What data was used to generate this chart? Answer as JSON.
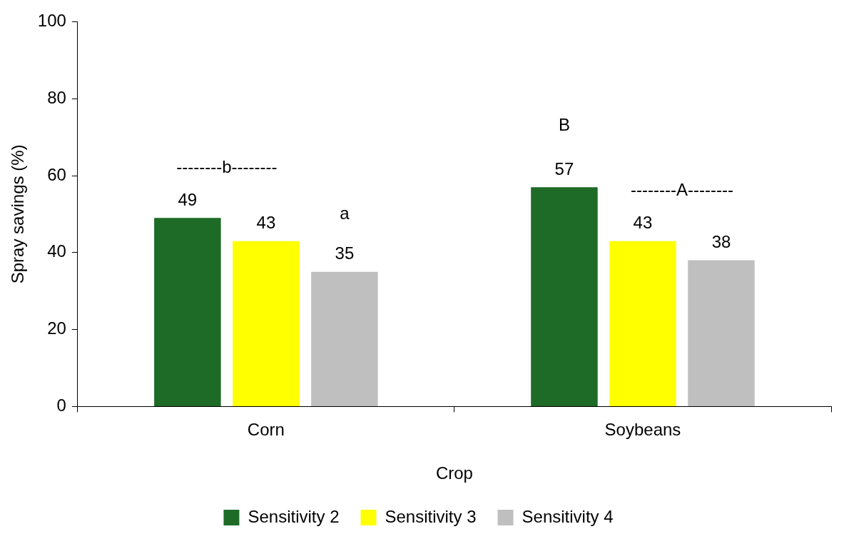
{
  "chart_data": {
    "type": "bar",
    "xlabel": "Crop",
    "ylabel": "Spray savings (%)",
    "categories": [
      "Corn",
      "Soybeans"
    ],
    "series": [
      {
        "name": "Sensitivity 2",
        "color": "#1e6b27",
        "values": [
          49,
          57
        ]
      },
      {
        "name": "Sensitivity 3",
        "color": "#ffff00",
        "values": [
          43,
          43
        ]
      },
      {
        "name": "Sensitivity 4",
        "color": "#bfbfbf",
        "values": [
          35,
          38
        ]
      }
    ],
    "ylim": [
      0,
      100
    ],
    "yticks": [
      0,
      20,
      40,
      60,
      80,
      100
    ],
    "grid": false,
    "legend": "bottom",
    "data_labels": true,
    "annotations": [
      "--------b--------",
      "a",
      "B",
      "--------A--------"
    ]
  }
}
